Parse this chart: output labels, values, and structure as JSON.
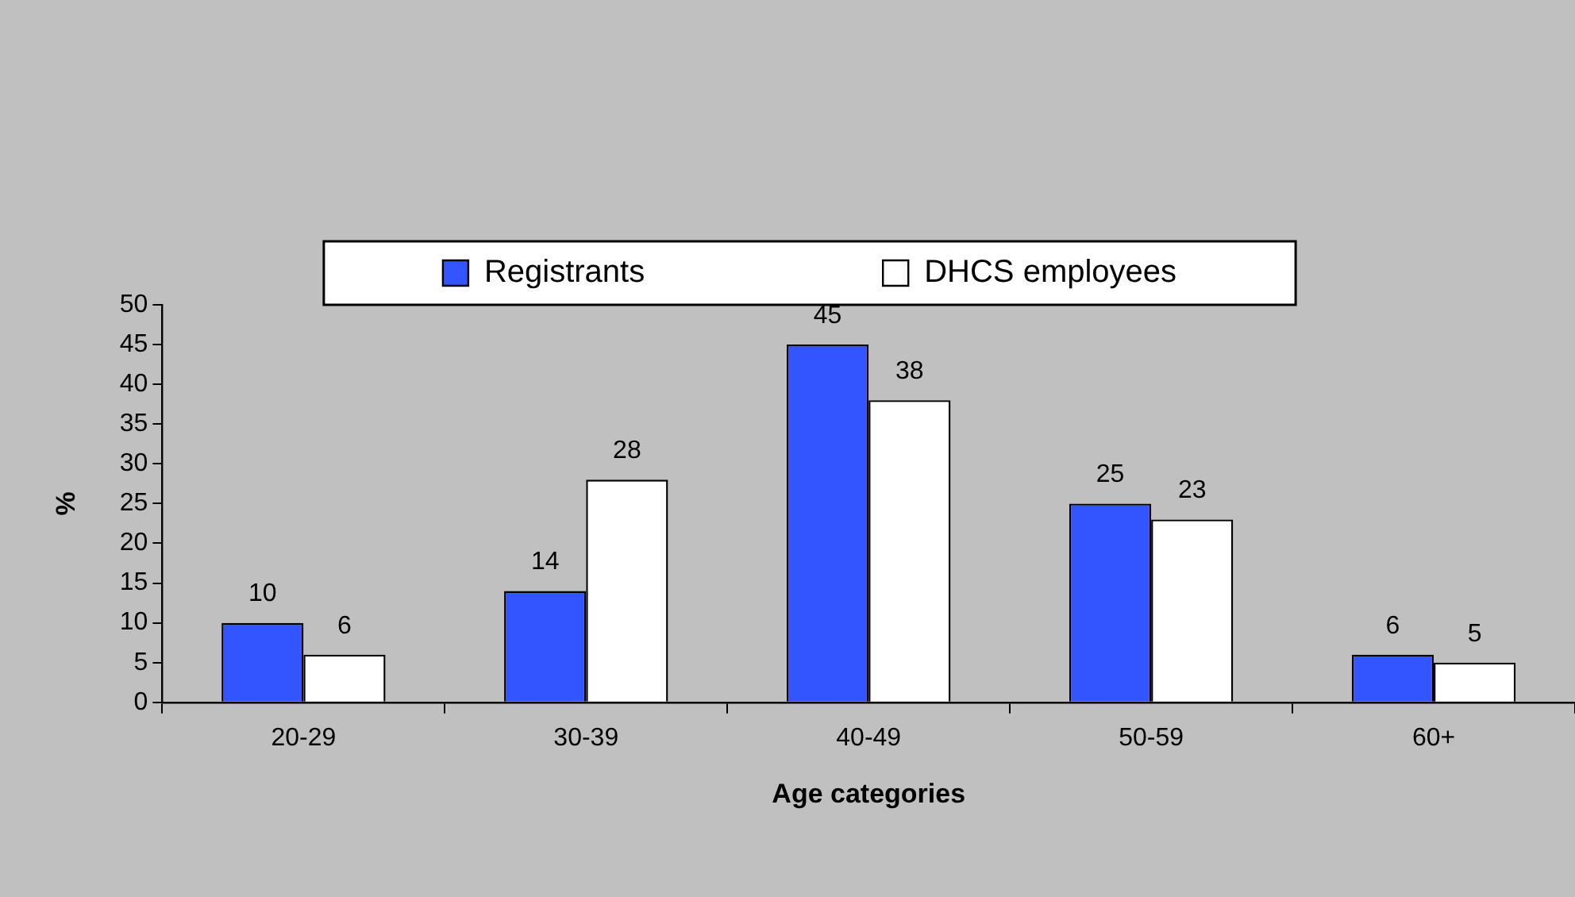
{
  "chart_data": {
    "type": "bar",
    "xlabel": "Age categories",
    "ylabel": "%",
    "categories": [
      "20-29",
      "30-39",
      "40-49",
      "50-59",
      "60+"
    ],
    "series": [
      {
        "name": "Registrants",
        "color": "#3355ff",
        "values": [
          10,
          14,
          45,
          25,
          6
        ]
      },
      {
        "name": "DHCS employees",
        "color": "#ffffff",
        "values": [
          6,
          28,
          38,
          23,
          5
        ]
      }
    ],
    "ylim": [
      0,
      50
    ],
    "yticks": [
      0,
      5,
      10,
      15,
      20,
      25,
      30,
      35,
      40,
      45,
      50
    ],
    "grid": false,
    "legend": "top",
    "data_labels": true
  }
}
